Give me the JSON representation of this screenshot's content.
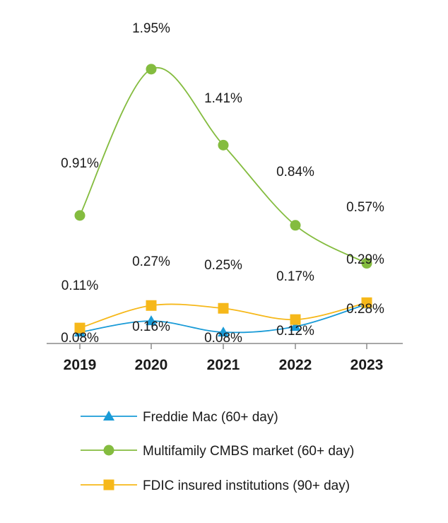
{
  "chart_data": {
    "type": "line",
    "title": "",
    "xlabel": "",
    "ylabel": "",
    "categories": [
      "2019",
      "2020",
      "2021",
      "2022",
      "2023"
    ],
    "ylim": [
      0,
      2.1
    ],
    "grid": false,
    "legend_position": "bottom",
    "series": [
      {
        "name": "Freddie Mac (60+ day)",
        "values": [
          0.08,
          0.16,
          0.08,
          0.12,
          0.28
        ],
        "labels": [
          "0.08%",
          "0.16%",
          "0.08%",
          "0.12%",
          "0.28%"
        ],
        "color": "#1a9bd7",
        "marker": "triangle"
      },
      {
        "name": "Multifamily CMBS market (60+ day)",
        "values": [
          0.91,
          1.95,
          1.41,
          0.84,
          0.57
        ],
        "labels": [
          "0.91%",
          "1.95%",
          "1.41%",
          "0.84%",
          "0.57%"
        ],
        "color": "#84bc3f",
        "marker": "circle"
      },
      {
        "name": "FDIC insured institutions (90+ day)",
        "values": [
          0.11,
          0.27,
          0.25,
          0.17,
          0.29
        ],
        "labels": [
          "0.11%",
          "0.27%",
          "0.25%",
          "0.17%",
          "0.29%"
        ],
        "color": "#f6b81a",
        "marker": "square"
      }
    ]
  }
}
